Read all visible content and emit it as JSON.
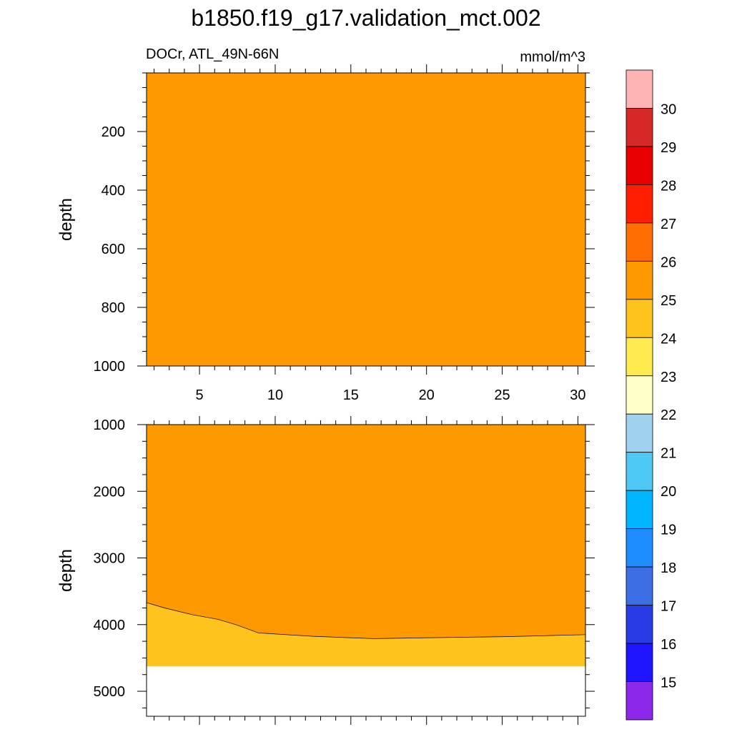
{
  "figure": {
    "title": "b1850.f19_g17.validation_mct.002",
    "left_string": "DOCr, ATL_49N-66N",
    "right_string": "mmol/m^3"
  },
  "chart_data": {
    "type": "heatmap",
    "x_range": [
      1.5,
      30.5
    ],
    "x_ticks": [
      5,
      10,
      15,
      20,
      25,
      30
    ],
    "panels": [
      {
        "name": "upper",
        "ylabel": "depth",
        "y_range": [
          0,
          1000
        ],
        "y_reversed": true,
        "y_ticks": [
          200,
          400,
          600,
          800,
          1000
        ],
        "show_x_tick_labels": true,
        "fills": [
          {
            "level": "25-26",
            "color": "#ff9900",
            "x": [
              1.5,
              30.5
            ],
            "top": [
              0,
              0
            ],
            "bottom": [
              1000,
              1000
            ]
          }
        ]
      },
      {
        "name": "lower",
        "ylabel": "depth",
        "y_range": [
          1000,
          5375
        ],
        "y_reversed": true,
        "y_ticks": [
          1000,
          2000,
          3000,
          4000,
          5000
        ],
        "show_x_tick_labels": false,
        "data_max_depth": 4625,
        "fills": [
          {
            "level": "25-26",
            "color": "#ff9900",
            "x": [
              1.5,
              30.5
            ],
            "top": [
              1000,
              1000
            ],
            "bottom": [
              4625,
              4625
            ]
          },
          {
            "level": "24-25",
            "color": "#ffc31e",
            "x": [
              1.5,
              2.7,
              4.5,
              6.2,
              7.4,
              8.9,
              12.5,
              16.5,
              20.5,
              25.3,
              30.5
            ],
            "top": [
              3670,
              3750,
              3850,
              3920,
              4000,
              4125,
              4175,
              4210,
              4195,
              4180,
              4150
            ],
            "bottom": [
              4625,
              4625,
              4625,
              4625,
              4625,
              4625,
              4625,
              4625,
              4625,
              4625,
              4625
            ]
          }
        ]
      }
    ],
    "colorbar": {
      "labels": [
        "30",
        "29",
        "28",
        "27",
        "26",
        "25",
        "24",
        "23",
        "22",
        "21",
        "20",
        "19",
        "18",
        "17",
        "16",
        "15"
      ],
      "colors": [
        "#ffb4b4",
        "#d72828",
        "#e60000",
        "#ff1e00",
        "#ff6e00",
        "#ff9900",
        "#ffc31e",
        "#ffea50",
        "#ffffc8",
        "#a0d2f0",
        "#50c8f5",
        "#00b4ff",
        "#1e8cff",
        "#3c6ee6",
        "#283ce6",
        "#1e14ff",
        "#8c28ea"
      ]
    }
  }
}
